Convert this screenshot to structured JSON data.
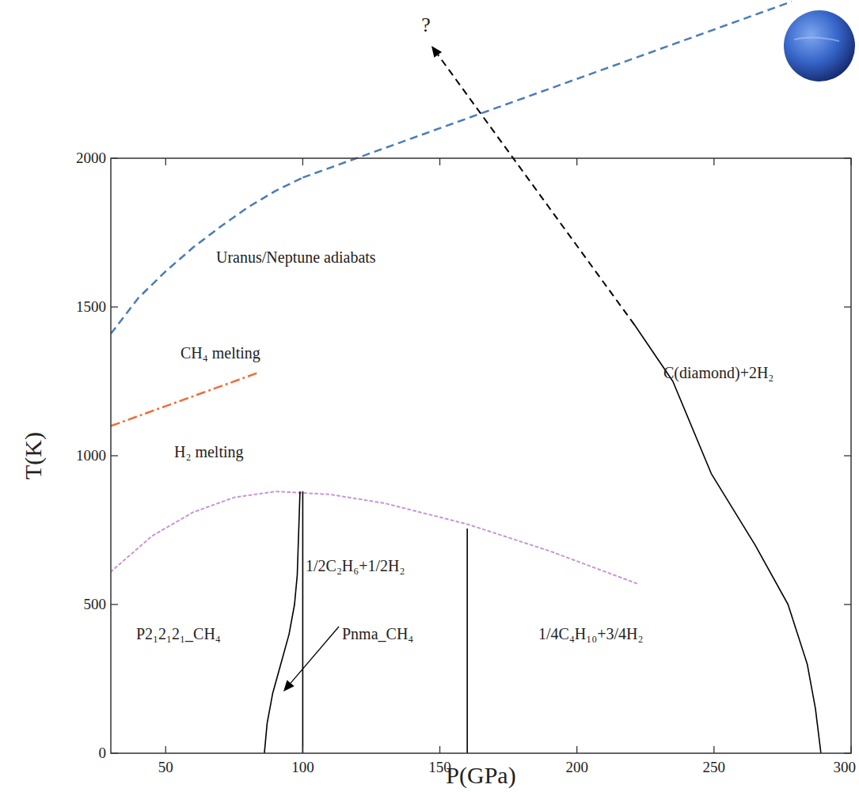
{
  "chart_data": {
    "type": "line",
    "xlabel": "P(GPa)",
    "ylabel": "T(K)",
    "xlim": [
      30,
      300
    ],
    "ylim": [
      0,
      2000
    ],
    "xticks": [
      50,
      100,
      150,
      200,
      250,
      300
    ],
    "yticks": [
      0,
      500,
      1000,
      1500,
      2000
    ],
    "series": [
      {
        "name": "Uranus/Neptune adiabats",
        "color": "#4a7cb8",
        "line_style": "dashed",
        "x": [
          30,
          40,
          50,
          60,
          70,
          80,
          90,
          100
        ],
        "values": [
          1410,
          1530,
          1620,
          1700,
          1770,
          1835,
          1890,
          1935
        ]
      },
      {
        "name": "CH₄ melting",
        "color": "#f26b36",
        "line_style": "dashdot",
        "x": [
          30,
          84
        ],
        "values": [
          1100,
          1280
        ]
      },
      {
        "name": "H₂ melting",
        "color": "#c994d8",
        "line_style": "dotted",
        "x": [
          30,
          45,
          60,
          75,
          90,
          110,
          130,
          160,
          190,
          222
        ],
        "values": [
          610,
          730,
          810,
          860,
          880,
          870,
          840,
          770,
          680,
          570
        ]
      },
      {
        "color": "#000000",
        "line_style": "solid",
        "x": [
          86,
          87,
          89,
          92,
          95,
          97,
          98,
          99
        ],
        "values": [
          0,
          100,
          200,
          300,
          400,
          500,
          600,
          880
        ]
      },
      {
        "color": "#000000",
        "line_style": "solid",
        "x": [
          100,
          100
        ],
        "values": [
          0,
          880
        ]
      },
      {
        "color": "#000000",
        "line_style": "solid",
        "x": [
          160,
          160
        ],
        "values": [
          0,
          755
        ]
      },
      {
        "color": "#000000",
        "line_style": "solid",
        "x": [
          221,
          235,
          249,
          265,
          277,
          284,
          287,
          289
        ],
        "values": [
          1440,
          1250,
          940,
          700,
          500,
          300,
          150,
          0
        ]
      }
    ],
    "annotations": [
      {
        "text": "1/2C₂H₆+1/2H₂"
      },
      {
        "text": "P2₁2₁2₁_CH₄"
      },
      {
        "text": "Pnma_CH₄"
      },
      {
        "text": "1/4C₄H₁₀+3/4H₂"
      },
      {
        "text": "C(diamond)+2H₂"
      },
      {
        "text": "?"
      }
    ]
  }
}
